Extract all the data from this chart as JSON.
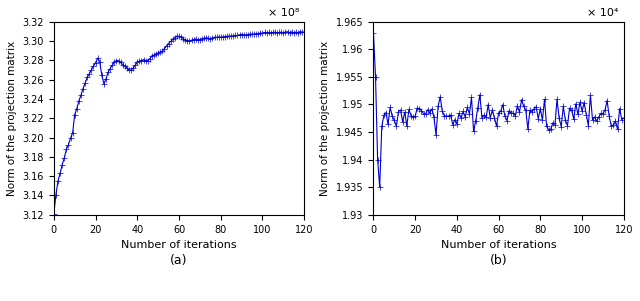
{
  "subplot_a": {
    "xlabel": "Number of iterations",
    "ylabel": "Norm of the projection matrix",
    "ylim": [
      312000000,
      332000000
    ],
    "xlim": [
      0,
      120
    ],
    "yticks": [
      312000000,
      314000000,
      316000000,
      318000000,
      320000000,
      322000000,
      324000000,
      326000000,
      328000000,
      330000000,
      332000000
    ],
    "ytick_labels": [
      "3.12",
      "3.14",
      "3.16",
      "3.18",
      "3.20",
      "3.22",
      "3.24",
      "3.26",
      "3.28",
      "3.30",
      "3.32"
    ],
    "xticks": [
      0,
      20,
      40,
      60,
      80,
      100,
      120
    ],
    "exp_label": "× 10⁸",
    "caption": "(a)"
  },
  "subplot_b": {
    "xlabel": "Number of iterations",
    "ylabel": "Norm of the projection matrix",
    "ylim": [
      19300,
      19650
    ],
    "xlim": [
      0,
      120
    ],
    "yticks": [
      19300,
      19350,
      19400,
      19450,
      19500,
      19550,
      19600,
      19650
    ],
    "ytick_labels": [
      "1.93",
      "1.935",
      "1.94",
      "1.945",
      "1.95",
      "1.955",
      "1.96",
      "1.965"
    ],
    "xticks": [
      0,
      20,
      40,
      60,
      80,
      100,
      120
    ],
    "exp_label": "× 10⁴",
    "caption": "(b)"
  },
  "line_color": "#0000CC",
  "marker": "+",
  "markersize": 4,
  "linewidth": 0.8
}
